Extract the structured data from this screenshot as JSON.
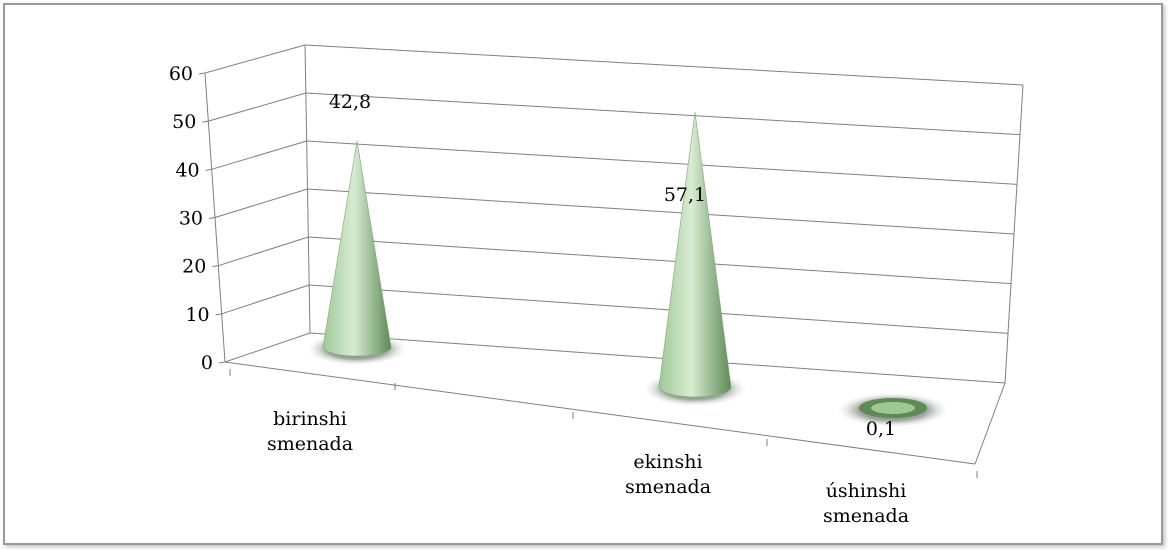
{
  "chart_data": {
    "type": "bar",
    "bar_shape": "cone-3d",
    "categories": [
      [
        "birinshi",
        "smenada"
      ],
      [
        "ekinshi",
        "smenada"
      ],
      [
        "úshinshi",
        "smenada"
      ]
    ],
    "values": [
      42.8,
      57.1,
      0.1
    ],
    "data_labels": [
      "42,8",
      "57,1",
      "0,1"
    ],
    "ylim": [
      0,
      60
    ],
    "yticks": [
      "0",
      "10",
      "20",
      "30",
      "40",
      "50",
      "60"
    ],
    "title": "",
    "xlabel": "",
    "ylabel": "",
    "grid": true,
    "legend": "none",
    "colors": {
      "cone_light": "#d8ecd2",
      "cone_mid": "#9fc895",
      "cone_dark": "#5d8a55",
      "shadow": "#3a4a3a",
      "grid": "#7f7f7f"
    }
  }
}
